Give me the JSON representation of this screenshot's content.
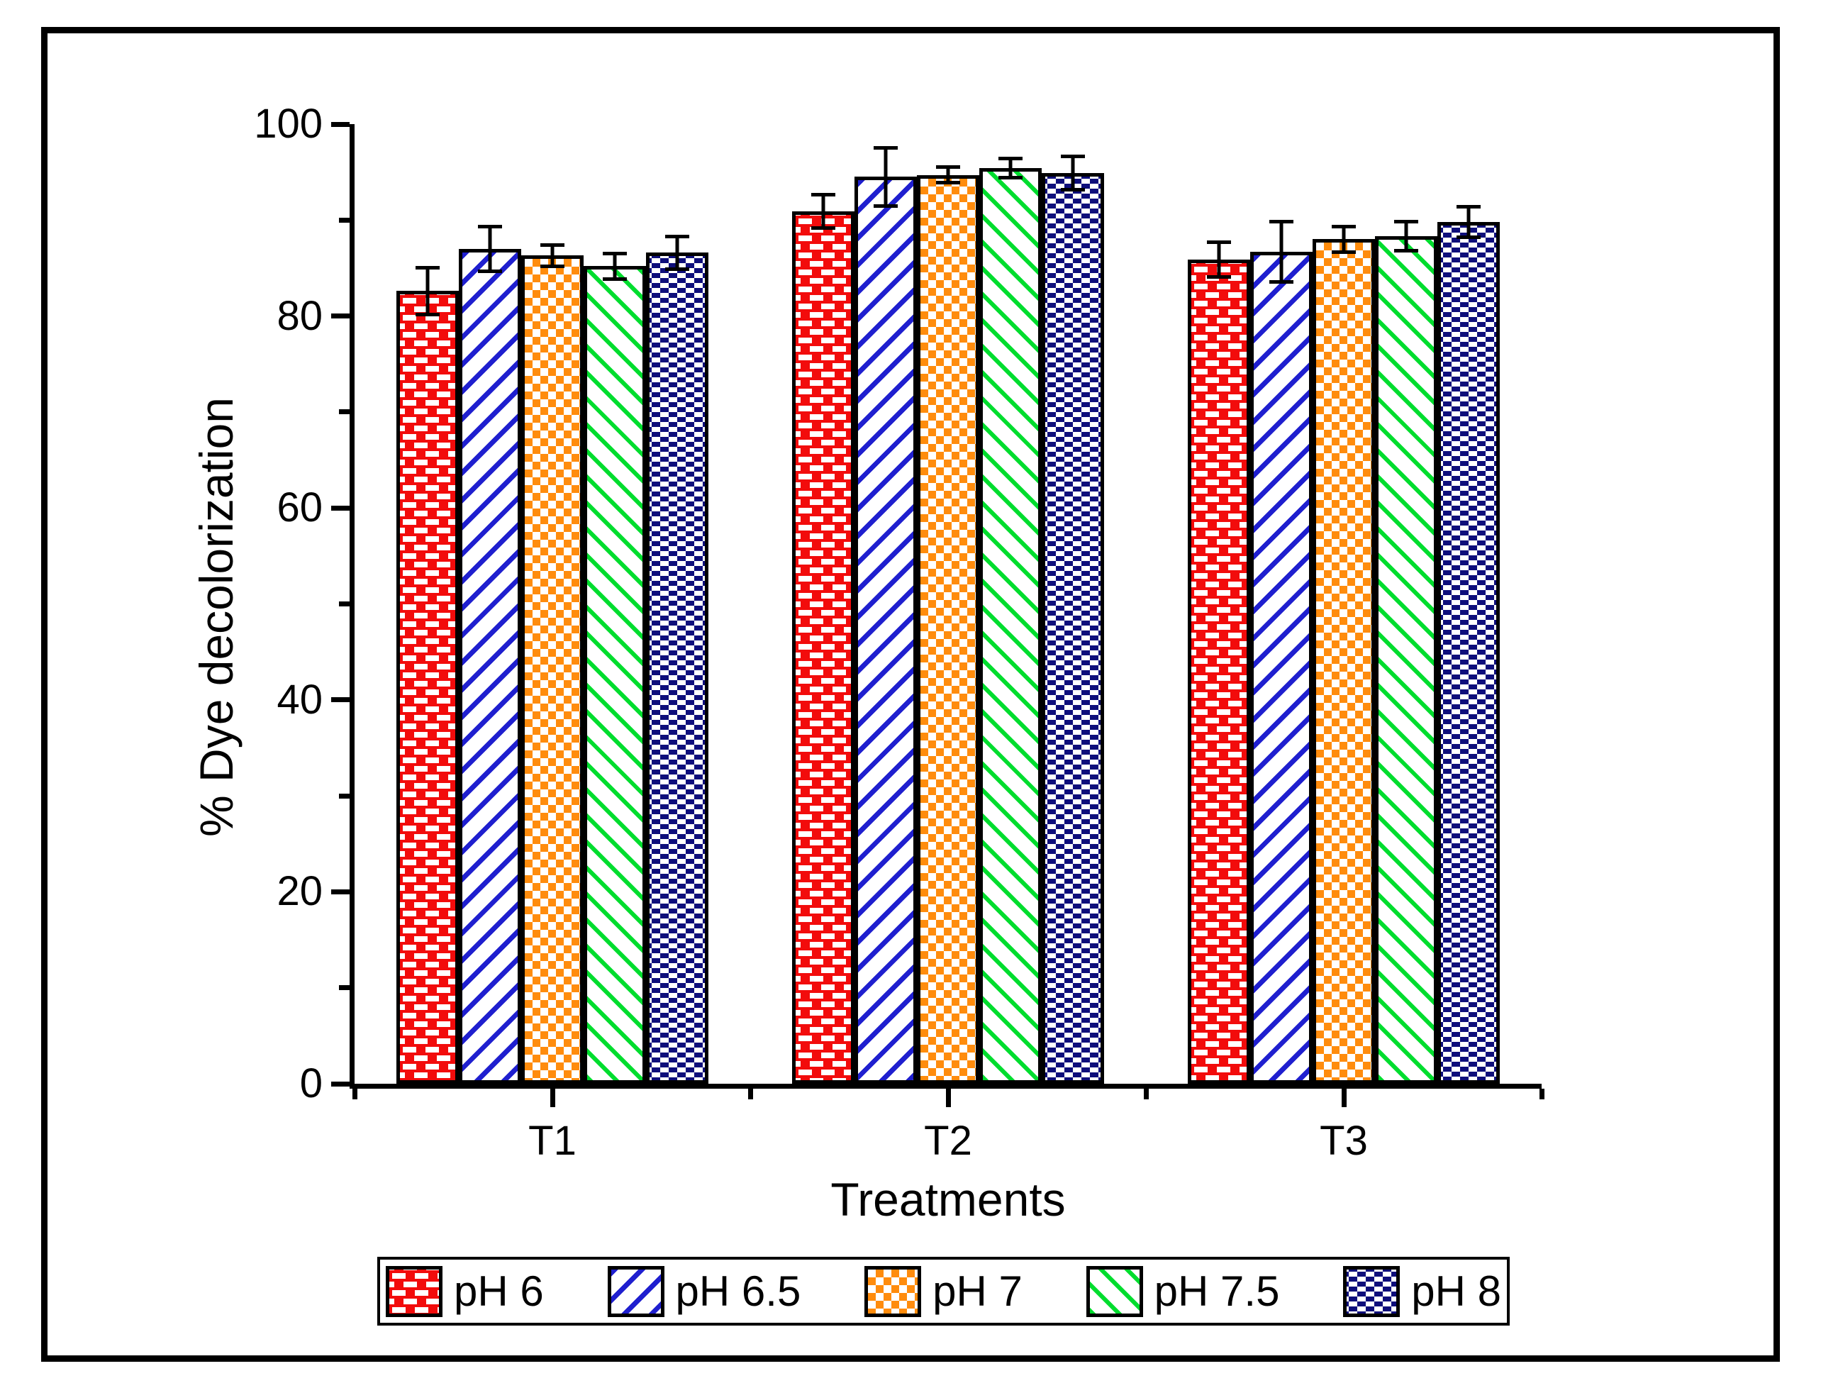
{
  "chart_data": {
    "type": "bar",
    "title": "",
    "xlabel": "Treatments",
    "ylabel": "% Dye decolorization",
    "categories": [
      "T1",
      "T2",
      "T3"
    ],
    "series": [
      {
        "name": "pH 6",
        "pattern": "red-brick",
        "hatch": "white dashes on red (brick)",
        "color": "#f20c0c",
        "values": [
          82.6,
          90.9,
          85.9
        ],
        "errors": [
          2.6,
          1.9,
          2.0
        ]
      },
      {
        "name": "pH 6.5",
        "pattern": "blue-stripe",
        "hatch": "blue diagonal / stripes",
        "color": "#1f1fcf",
        "values": [
          87.0,
          94.5,
          86.7
        ],
        "errors": [
          2.5,
          3.2,
          3.3
        ]
      },
      {
        "name": "pH 7",
        "pattern": "orange-checker",
        "hatch": "orange-white checkerboard",
        "color": "#ff8c0d",
        "values": [
          86.3,
          94.7,
          88.0
        ],
        "errors": [
          1.3,
          1.0,
          1.5
        ]
      },
      {
        "name": "pH 7.5",
        "pattern": "green-stripe",
        "hatch": "green diagonal \\ stripes",
        "color": "#00dd2e",
        "values": [
          85.2,
          95.4,
          88.3
        ],
        "errors": [
          1.5,
          1.2,
          1.7
        ]
      },
      {
        "name": "pH 8",
        "pattern": "navy-brick",
        "hatch": "white dashes on navy (brick)",
        "color": "#0e0e7b",
        "values": [
          86.6,
          94.9,
          89.8
        ],
        "errors": [
          1.9,
          1.9,
          1.8
        ]
      }
    ],
    "ylim": [
      0,
      100
    ],
    "yticks": [
      0,
      20,
      40,
      60,
      80,
      100
    ],
    "yminorticks": [
      10,
      30,
      50,
      70,
      90
    ],
    "grid": false,
    "error_bars": "symmetric, capped",
    "legend_position": "bottom",
    "frame": {
      "outer_border": true,
      "spines": [
        "left",
        "bottom"
      ]
    }
  }
}
